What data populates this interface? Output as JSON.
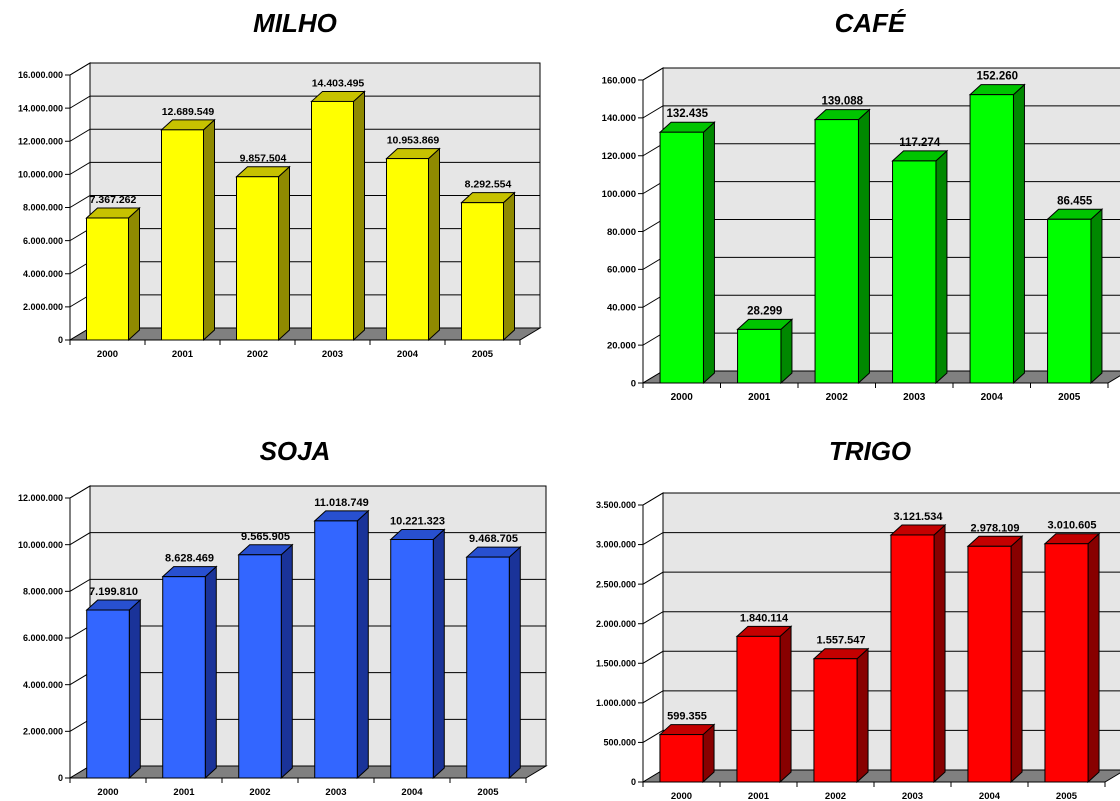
{
  "chart_data": [
    {
      "type": "bar",
      "title": "MILHO",
      "categories": [
        "2000",
        "2001",
        "2002",
        "2003",
        "2004",
        "2005"
      ],
      "values": [
        7367262,
        12689549,
        9857504,
        14403495,
        10953869,
        8292554
      ],
      "value_labels": [
        "7.367.262",
        "12.689.549",
        "9.857.504",
        "14.403.495",
        "10.953.869",
        "8.292.554"
      ],
      "ylim": [
        0,
        16000000
      ],
      "yticks": [
        0,
        2000000,
        4000000,
        6000000,
        8000000,
        10000000,
        12000000,
        14000000,
        16000000
      ],
      "ytick_labels": [
        "0",
        "2.000.000",
        "4.000.000",
        "6.000.000",
        "8.000.000",
        "10.000.000",
        "12.000.000",
        "14.000.000",
        "16.000.000"
      ],
      "xlabel": "",
      "ylabel": "",
      "grid": true,
      "colors": {
        "front": "#ffff00",
        "side": "#8f8a00",
        "top": "#c7c200"
      }
    },
    {
      "type": "bar",
      "title": "CAFÉ",
      "categories": [
        "2000",
        "2001",
        "2002",
        "2003",
        "2004",
        "2005"
      ],
      "values": [
        132435,
        28299,
        139088,
        117274,
        152260,
        86455
      ],
      "value_labels": [
        "132.435",
        "28.299",
        "139.088",
        "117.274",
        "152.260",
        "86.455"
      ],
      "ylim": [
        0,
        160000
      ],
      "yticks": [
        0,
        20000,
        40000,
        60000,
        80000,
        100000,
        120000,
        140000,
        160000
      ],
      "ytick_labels": [
        "0",
        "20.000",
        "40.000",
        "60.000",
        "80.000",
        "100.000",
        "120.000",
        "140.000",
        "160.000"
      ],
      "xlabel": "",
      "ylabel": "",
      "grid": true,
      "colors": {
        "front": "#00ff00",
        "side": "#008800",
        "top": "#00c400"
      }
    },
    {
      "type": "bar",
      "title": "SOJA",
      "categories": [
        "2000",
        "2001",
        "2002",
        "2003",
        "2004",
        "2005"
      ],
      "values": [
        7199810,
        8628469,
        9565905,
        11018749,
        10221323,
        9468705
      ],
      "value_labels": [
        "7.199.810",
        "8.628.469",
        "9.565.905",
        "11.018.749",
        "10.221.323",
        "9.468.705"
      ],
      "ylim": [
        0,
        12000000
      ],
      "yticks": [
        0,
        2000000,
        4000000,
        6000000,
        8000000,
        10000000,
        12000000
      ],
      "ytick_labels": [
        "0",
        "2.000.000",
        "4.000.000",
        "6.000.000",
        "8.000.000",
        "10.000.000",
        "12.000.000"
      ],
      "xlabel": "",
      "ylabel": "",
      "grid": true,
      "colors": {
        "front": "#3366ff",
        "side": "#1a3399",
        "top": "#2850d0"
      }
    },
    {
      "type": "bar",
      "title": "TRIGO",
      "categories": [
        "2000",
        "2001",
        "2002",
        "2003",
        "2004",
        "2005"
      ],
      "values": [
        599355,
        1840114,
        1557547,
        3121534,
        2978109,
        3010605
      ],
      "value_labels": [
        "599.355",
        "1.840.114",
        "1.557.547",
        "3.121.534",
        "2.978.109",
        "3.010.605"
      ],
      "ylim": [
        0,
        3500000
      ],
      "yticks": [
        0,
        500000,
        1000000,
        1500000,
        2000000,
        2500000,
        3000000,
        3500000
      ],
      "ytick_labels": [
        "0",
        "500.000",
        "1.000.000",
        "1.500.000",
        "2.000.000",
        "2.500.000",
        "3.000.000",
        "3.500.000"
      ],
      "xlabel": "",
      "ylabel": "",
      "grid": true,
      "colors": {
        "front": "#ff0000",
        "side": "#880000",
        "top": "#c40000"
      }
    }
  ]
}
